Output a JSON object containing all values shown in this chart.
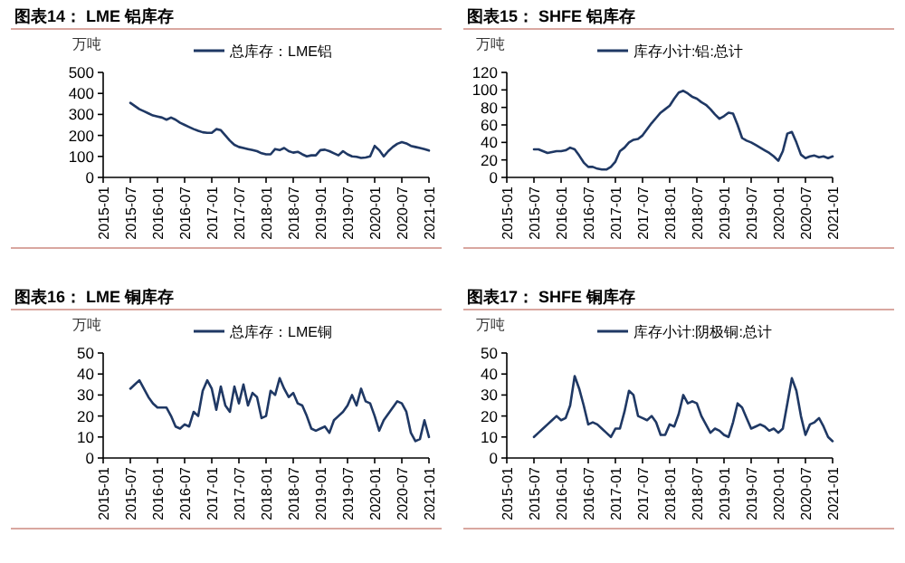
{
  "chart_data": [
    {
      "type": "line",
      "title": "图表14： LME 铝库存",
      "ylabel": "万吨",
      "legend": "top",
      "grid": false,
      "x": [
        "2015-07",
        "2015-08",
        "2015-09",
        "2015-10",
        "2015-11",
        "2015-12",
        "2016-01",
        "2016-02",
        "2016-03",
        "2016-04",
        "2016-05",
        "2016-06",
        "2016-07",
        "2016-08",
        "2016-09",
        "2016-10",
        "2016-11",
        "2016-12",
        "2017-01",
        "2017-02",
        "2017-03",
        "2017-04",
        "2017-05",
        "2017-06",
        "2017-07",
        "2017-08",
        "2017-09",
        "2017-10",
        "2017-11",
        "2017-12",
        "2018-01",
        "2018-02",
        "2018-03",
        "2018-04",
        "2018-05",
        "2018-06",
        "2018-07",
        "2018-08",
        "2018-09",
        "2018-10",
        "2018-11",
        "2018-12",
        "2019-01",
        "2019-02",
        "2019-03",
        "2019-04",
        "2019-05",
        "2019-06",
        "2019-07",
        "2019-08",
        "2019-09",
        "2019-10",
        "2019-11",
        "2019-12",
        "2020-01",
        "2020-02",
        "2020-03",
        "2020-04",
        "2020-05",
        "2020-06",
        "2020-07",
        "2020-08",
        "2020-09",
        "2020-10",
        "2020-11",
        "2020-12",
        "2021-01"
      ],
      "series": [
        {
          "name": "总库存：LME铝",
          "color": "#1f3864",
          "values": [
            355,
            340,
            325,
            315,
            305,
            295,
            290,
            285,
            275,
            285,
            275,
            260,
            250,
            240,
            230,
            222,
            215,
            212,
            212,
            230,
            225,
            200,
            175,
            155,
            145,
            140,
            135,
            130,
            125,
            115,
            110,
            110,
            135,
            130,
            140,
            125,
            118,
            122,
            110,
            100,
            105,
            105,
            130,
            132,
            125,
            115,
            105,
            125,
            110,
            100,
            98,
            93,
            95,
            100,
            150,
            130,
            100,
            125,
            145,
            160,
            168,
            162,
            150,
            145,
            140,
            135,
            128
          ]
        }
      ],
      "xlim": [
        "2015-01",
        "2021-01"
      ],
      "xticks": [
        "2015-01",
        "2015-07",
        "2016-01",
        "2016-07",
        "2017-01",
        "2017-07",
        "2018-01",
        "2018-07",
        "2019-01",
        "2019-07",
        "2020-01",
        "2020-07",
        "2021-01"
      ],
      "ylim": [
        0,
        500
      ],
      "yticks": [
        0,
        100,
        200,
        300,
        400,
        500
      ]
    },
    {
      "type": "line",
      "title": "图表15： SHFE 铝库存",
      "ylabel": "万吨",
      "legend": "top",
      "grid": false,
      "x": [
        "2015-07",
        "2015-08",
        "2015-09",
        "2015-10",
        "2015-11",
        "2015-12",
        "2016-01",
        "2016-02",
        "2016-03",
        "2016-04",
        "2016-05",
        "2016-06",
        "2016-07",
        "2016-08",
        "2016-09",
        "2016-10",
        "2016-11",
        "2016-12",
        "2017-01",
        "2017-02",
        "2017-03",
        "2017-04",
        "2017-05",
        "2017-06",
        "2017-07",
        "2017-08",
        "2017-09",
        "2017-10",
        "2017-11",
        "2017-12",
        "2018-01",
        "2018-02",
        "2018-03",
        "2018-04",
        "2018-05",
        "2018-06",
        "2018-07",
        "2018-08",
        "2018-09",
        "2018-10",
        "2018-11",
        "2018-12",
        "2019-01",
        "2019-02",
        "2019-03",
        "2019-04",
        "2019-05",
        "2019-06",
        "2019-07",
        "2019-08",
        "2019-09",
        "2019-10",
        "2019-11",
        "2019-12",
        "2020-01",
        "2020-02",
        "2020-03",
        "2020-04",
        "2020-05",
        "2020-06",
        "2020-07",
        "2020-08",
        "2020-09",
        "2020-10",
        "2020-11",
        "2020-12",
        "2021-01"
      ],
      "series": [
        {
          "name": "库存小计:铝:总计",
          "color": "#1f3864",
          "values": [
            32,
            32,
            30,
            28,
            29,
            30,
            30,
            31,
            34,
            32,
            25,
            17,
            12,
            12,
            10,
            9,
            9,
            12,
            18,
            30,
            34,
            40,
            43,
            44,
            48,
            55,
            62,
            68,
            74,
            78,
            82,
            90,
            97,
            99,
            96,
            92,
            90,
            86,
            83,
            78,
            72,
            67,
            70,
            74,
            73,
            60,
            45,
            42,
            40,
            37,
            34,
            31,
            28,
            24,
            19,
            30,
            50,
            52,
            40,
            26,
            22,
            24,
            25,
            23,
            24,
            22,
            24
          ]
        }
      ],
      "xlim": [
        "2015-01",
        "2021-01"
      ],
      "xticks": [
        "2015-01",
        "2015-07",
        "2016-01",
        "2016-07",
        "2017-01",
        "2017-07",
        "2018-01",
        "2018-07",
        "2019-01",
        "2019-07",
        "2020-01",
        "2020-07",
        "2021-01"
      ],
      "ylim": [
        0,
        120
      ],
      "yticks": [
        0,
        20,
        40,
        60,
        80,
        100,
        120
      ]
    },
    {
      "type": "line",
      "title": "图表16： LME 铜库存",
      "ylabel": "万吨",
      "legend": "top",
      "grid": false,
      "x": [
        "2015-07",
        "2015-08",
        "2015-09",
        "2015-10",
        "2015-11",
        "2015-12",
        "2016-01",
        "2016-02",
        "2016-03",
        "2016-04",
        "2016-05",
        "2016-06",
        "2016-07",
        "2016-08",
        "2016-09",
        "2016-10",
        "2016-11",
        "2016-12",
        "2017-01",
        "2017-02",
        "2017-03",
        "2017-04",
        "2017-05",
        "2017-06",
        "2017-07",
        "2017-08",
        "2017-09",
        "2017-10",
        "2017-11",
        "2017-12",
        "2018-01",
        "2018-02",
        "2018-03",
        "2018-04",
        "2018-05",
        "2018-06",
        "2018-07",
        "2018-08",
        "2018-09",
        "2018-10",
        "2018-11",
        "2018-12",
        "2019-01",
        "2019-02",
        "2019-03",
        "2019-04",
        "2019-05",
        "2019-06",
        "2019-07",
        "2019-08",
        "2019-09",
        "2019-10",
        "2019-11",
        "2019-12",
        "2020-01",
        "2020-02",
        "2020-03",
        "2020-04",
        "2020-05",
        "2020-06",
        "2020-07",
        "2020-08",
        "2020-09",
        "2020-10",
        "2020-11",
        "2020-12",
        "2021-01"
      ],
      "series": [
        {
          "name": "总库存：LME铜",
          "color": "#1f3864",
          "values": [
            33,
            35,
            37,
            33,
            29,
            26,
            24,
            24,
            24,
            20,
            15,
            14,
            16,
            15,
            22,
            20,
            32,
            37,
            33,
            23,
            34,
            25,
            22,
            34,
            26,
            35,
            25,
            31,
            29,
            19,
            20,
            32,
            30,
            38,
            33,
            29,
            31,
            26,
            25,
            20,
            14,
            13,
            14,
            15,
            12,
            18,
            20,
            22,
            25,
            30,
            25,
            33,
            27,
            26,
            20,
            13,
            18,
            21,
            24,
            27,
            26,
            22,
            12,
            8,
            9,
            18,
            10
          ]
        }
      ],
      "xlim": [
        "2015-01",
        "2021-01"
      ],
      "xticks": [
        "2015-01",
        "2015-07",
        "2016-01",
        "2016-07",
        "2017-01",
        "2017-07",
        "2018-01",
        "2018-07",
        "2019-01",
        "2019-07",
        "2020-01",
        "2020-07",
        "2021-01"
      ],
      "ylim": [
        0,
        50
      ],
      "yticks": [
        0,
        10,
        20,
        30,
        40,
        50
      ]
    },
    {
      "type": "line",
      "title": "图表17： SHFE 铜库存",
      "ylabel": "万吨",
      "legend": "top",
      "grid": false,
      "x": [
        "2015-07",
        "2015-08",
        "2015-09",
        "2015-10",
        "2015-11",
        "2015-12",
        "2016-01",
        "2016-02",
        "2016-03",
        "2016-04",
        "2016-05",
        "2016-06",
        "2016-07",
        "2016-08",
        "2016-09",
        "2016-10",
        "2016-11",
        "2016-12",
        "2017-01",
        "2017-02",
        "2017-03",
        "2017-04",
        "2017-05",
        "2017-06",
        "2017-07",
        "2017-08",
        "2017-09",
        "2017-10",
        "2017-11",
        "2017-12",
        "2018-01",
        "2018-02",
        "2018-03",
        "2018-04",
        "2018-05",
        "2018-06",
        "2018-07",
        "2018-08",
        "2018-09",
        "2018-10",
        "2018-11",
        "2018-12",
        "2019-01",
        "2019-02",
        "2019-03",
        "2019-04",
        "2019-05",
        "2019-06",
        "2019-07",
        "2019-08",
        "2019-09",
        "2019-10",
        "2019-11",
        "2019-12",
        "2020-01",
        "2020-02",
        "2020-03",
        "2020-04",
        "2020-05",
        "2020-06",
        "2020-07",
        "2020-08",
        "2020-09",
        "2020-10",
        "2020-11",
        "2020-12",
        "2021-01"
      ],
      "series": [
        {
          "name": "库存小计:阴极铜:总计",
          "color": "#1f3864",
          "values": [
            10,
            12,
            14,
            16,
            18,
            20,
            18,
            19,
            25,
            39,
            33,
            25,
            16,
            17,
            16,
            14,
            12,
            10,
            14,
            14,
            22,
            32,
            30,
            20,
            19,
            18,
            20,
            17,
            11,
            11,
            16,
            15,
            21,
            30,
            26,
            27,
            26,
            20,
            16,
            12,
            14,
            13,
            11,
            10,
            17,
            26,
            24,
            19,
            14,
            15,
            16,
            15,
            13,
            14,
            12,
            14,
            26,
            38,
            32,
            20,
            11,
            16,
            17,
            19,
            15,
            10,
            8
          ]
        }
      ],
      "xlim": [
        "2015-01",
        "2021-01"
      ],
      "xticks": [
        "2015-01",
        "2015-07",
        "2016-01",
        "2016-07",
        "2017-01",
        "2017-07",
        "2018-01",
        "2018-07",
        "2019-01",
        "2019-07",
        "2020-01",
        "2020-07",
        "2021-01"
      ],
      "ylim": [
        0,
        50
      ],
      "yticks": [
        0,
        10,
        20,
        30,
        40,
        50
      ]
    }
  ]
}
